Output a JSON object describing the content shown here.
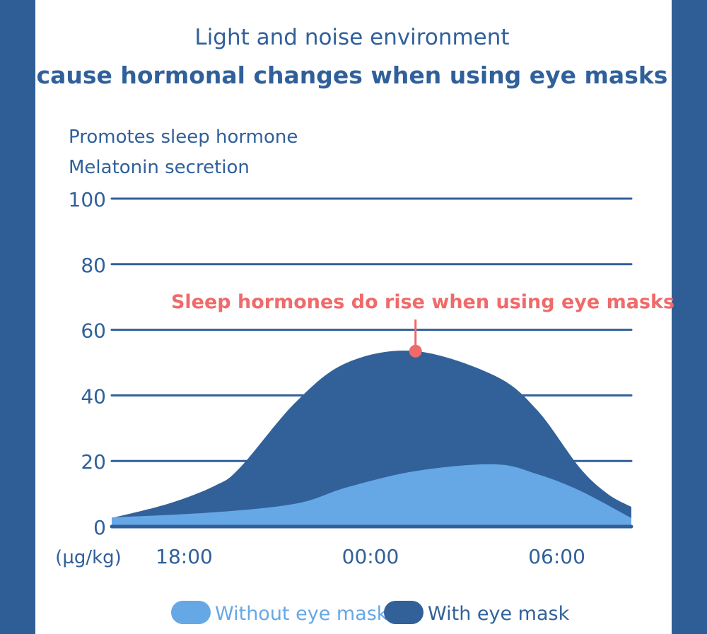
{
  "chart_data": {
    "type": "area",
    "title": "Light and noise environment",
    "subtitle": "cause hormonal changes when using eye masks",
    "ylabel_lines": [
      "Promotes sleep hormone",
      "Melatonin secretion"
    ],
    "yunit": "(µg/kg)",
    "ylim": [
      0,
      100
    ],
    "yticks": [
      0,
      20,
      40,
      60,
      80,
      100
    ],
    "xticks": [
      "18:00",
      "00:00",
      "06:00"
    ],
    "xlim": [
      "15:40",
      "08:24"
    ],
    "grid": true,
    "legend_placement": "bottom",
    "annotation": {
      "text": "Sleep hormones do rise when using eye masks",
      "x": "01:27",
      "y": 53.5,
      "color": "#ef6a6a"
    },
    "series": [
      {
        "name": "With eye mask",
        "color": "#32619a",
        "x": [
          "15:40",
          "17:30",
          "19:00",
          "19:48",
          "21:36",
          "23:15",
          "01:27",
          "04:00",
          "05:22",
          "06:44",
          "07:38",
          "08:24"
        ],
        "y": [
          2.6,
          7,
          12.5,
          18,
          38,
          50,
          53.5,
          46,
          35.5,
          18,
          10,
          6
        ]
      },
      {
        "name": "Without eye mask",
        "color": "#66a8e6",
        "x": [
          "15:40",
          "18:53",
          "21:36",
          "23:15",
          "01:30",
          "04:00",
          "05:22",
          "06:44",
          "08:24"
        ],
        "y": [
          2.8,
          4.3,
          7,
          12,
          17,
          19,
          16,
          11,
          2.6
        ]
      }
    ]
  }
}
